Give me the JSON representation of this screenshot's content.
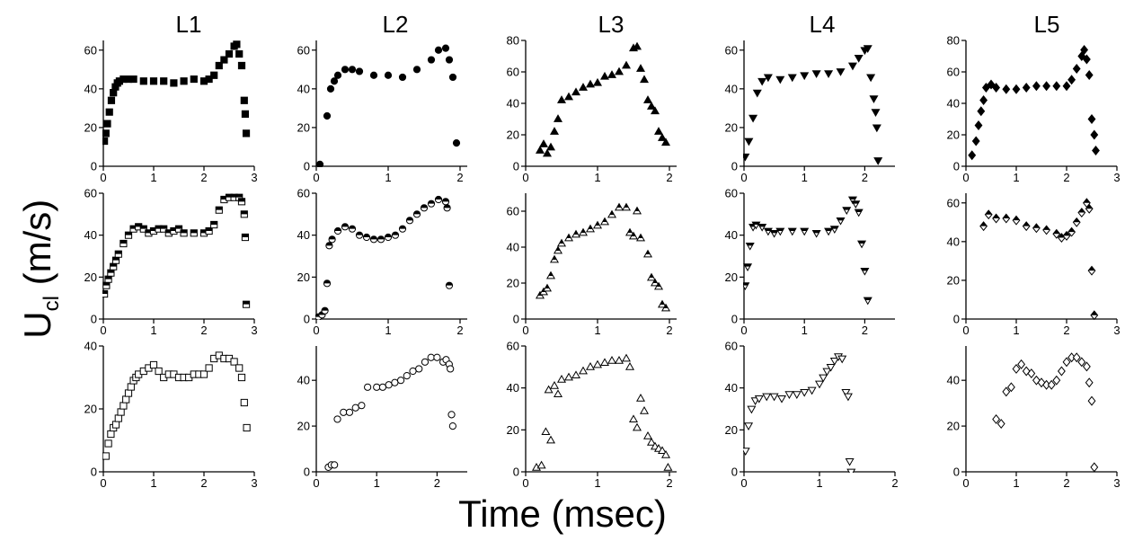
{
  "figure": {
    "xlabel": "Time (msec)",
    "ylabel_main": "U",
    "ylabel_sub": "cl",
    "ylabel_unit": " (m/s)",
    "column_titles": [
      "L1",
      "L2",
      "L3",
      "L4",
      "L5"
    ]
  },
  "chart_data": [
    {
      "type": "scatter",
      "row": 0,
      "col": 0,
      "marker": "square",
      "fill": "solid",
      "xlim": [
        0,
        3
      ],
      "ylim": [
        0,
        65
      ],
      "xticks": [
        0,
        1,
        2,
        3
      ],
      "yticks": [
        0,
        20,
        40,
        60
      ],
      "series": [
        {
          "x": [
            0.02,
            0.05,
            0.08,
            0.12,
            0.16,
            0.2,
            0.24,
            0.28,
            0.32,
            0.4,
            0.5,
            0.6,
            0.8,
            1.0,
            1.2,
            1.4,
            1.6,
            1.8,
            2.0,
            2.1,
            2.2,
            2.3,
            2.4,
            2.5,
            2.6,
            2.65,
            2.7,
            2.75,
            2.8,
            2.82,
            2.84
          ],
          "y": [
            13,
            17,
            22,
            28,
            34,
            38,
            41,
            43,
            44,
            45,
            45,
            45,
            44,
            44,
            44,
            43,
            44,
            45,
            44,
            45,
            47,
            52,
            55,
            58,
            62,
            63,
            58,
            52,
            34,
            27,
            17
          ]
        }
      ]
    },
    {
      "type": "scatter",
      "row": 0,
      "col": 1,
      "marker": "circle",
      "fill": "solid",
      "xlim": [
        0,
        2.1
      ],
      "ylim": [
        0,
        65
      ],
      "xticks": [
        0,
        1,
        2
      ],
      "yticks": [
        0,
        20,
        40,
        60
      ],
      "series": [
        {
          "x": [
            0.05,
            0.15,
            0.2,
            0.25,
            0.3,
            0.4,
            0.5,
            0.6,
            0.8,
            1.0,
            1.2,
            1.4,
            1.6,
            1.7,
            1.8,
            1.85,
            1.9,
            1.95
          ],
          "y": [
            1,
            26,
            40,
            44,
            47,
            50,
            50,
            49,
            47,
            47,
            46,
            50,
            55,
            60,
            61,
            55,
            46,
            12
          ]
        }
      ]
    },
    {
      "type": "scatter",
      "row": 0,
      "col": 2,
      "marker": "triangle-up",
      "fill": "solid",
      "xlim": [
        0,
        2.1
      ],
      "ylim": [
        0,
        80
      ],
      "xticks": [
        0,
        1,
        2
      ],
      "yticks": [
        0,
        20,
        40,
        60,
        80
      ],
      "series": [
        {
          "x": [
            0.2,
            0.25,
            0.3,
            0.35,
            0.4,
            0.45,
            0.5,
            0.6,
            0.7,
            0.8,
            0.9,
            1.0,
            1.1,
            1.2,
            1.3,
            1.4,
            1.5,
            1.55,
            1.6,
            1.65,
            1.7,
            1.75,
            1.8,
            1.85,
            1.9,
            1.95
          ],
          "y": [
            10,
            14,
            8,
            12,
            22,
            30,
            42,
            44,
            47,
            50,
            52,
            53,
            57,
            58,
            60,
            64,
            75,
            76,
            62,
            55,
            42,
            38,
            35,
            22,
            18,
            15
          ]
        }
      ]
    },
    {
      "type": "scatter",
      "row": 0,
      "col": 3,
      "marker": "triangle-down",
      "fill": "solid",
      "xlim": [
        0,
        2.5
      ],
      "ylim": [
        0,
        65
      ],
      "xticks": [
        0,
        1,
        2
      ],
      "yticks": [
        0,
        20,
        40,
        60
      ],
      "series": [
        {
          "x": [
            0.02,
            0.08,
            0.15,
            0.22,
            0.3,
            0.4,
            0.6,
            0.8,
            1.0,
            1.2,
            1.4,
            1.6,
            1.8,
            1.9,
            2.0,
            2.05,
            2.1,
            2.15,
            2.18,
            2.2,
            2.22
          ],
          "y": [
            5,
            13,
            25,
            38,
            44,
            46,
            45,
            46,
            47,
            48,
            48,
            49,
            52,
            56,
            60,
            61,
            46,
            35,
            28,
            20,
            3
          ]
        }
      ]
    },
    {
      "type": "scatter",
      "row": 0,
      "col": 4,
      "marker": "diamond",
      "fill": "solid",
      "xlim": [
        0,
        3
      ],
      "ylim": [
        0,
        80
      ],
      "xticks": [
        0,
        1,
        2,
        3
      ],
      "yticks": [
        0,
        20,
        40,
        60,
        80
      ],
      "series": [
        {
          "x": [
            0.12,
            0.2,
            0.25,
            0.3,
            0.35,
            0.4,
            0.5,
            0.6,
            0.8,
            1.0,
            1.2,
            1.4,
            1.6,
            1.8,
            2.0,
            2.1,
            2.2,
            2.3,
            2.35,
            2.4,
            2.45,
            2.5,
            2.55,
            2.58
          ],
          "y": [
            7,
            16,
            26,
            35,
            42,
            50,
            52,
            50,
            49,
            49,
            50,
            51,
            51,
            51,
            51,
            55,
            62,
            70,
            74,
            68,
            58,
            30,
            20,
            10
          ]
        }
      ]
    },
    {
      "type": "scatter",
      "row": 1,
      "col": 0,
      "marker": "square",
      "fill": "half",
      "xlim": [
        0,
        3
      ],
      "ylim": [
        0,
        60
      ],
      "xticks": [
        0,
        1,
        2,
        3
      ],
      "yticks": [
        0,
        20,
        40,
        60
      ],
      "series": [
        {
          "x": [
            0.02,
            0.06,
            0.1,
            0.15,
            0.2,
            0.25,
            0.3,
            0.4,
            0.5,
            0.6,
            0.7,
            0.8,
            0.9,
            1.0,
            1.1,
            1.2,
            1.3,
            1.4,
            1.5,
            1.6,
            1.8,
            2.0,
            2.1,
            2.2,
            2.3,
            2.4,
            2.5,
            2.6,
            2.7,
            2.75,
            2.8,
            2.82,
            2.84
          ],
          "y": [
            12,
            16,
            19,
            22,
            25,
            28,
            31,
            36,
            40,
            43,
            44,
            43,
            41,
            42,
            43,
            43,
            41,
            42,
            43,
            41,
            41,
            41,
            42,
            45,
            52,
            57,
            58,
            58,
            58,
            56,
            50,
            39,
            7
          ]
        }
      ]
    },
    {
      "type": "scatter",
      "row": 1,
      "col": 1,
      "marker": "circle",
      "fill": "half",
      "xlim": [
        0,
        2.1
      ],
      "ylim": [
        0,
        60
      ],
      "xticks": [
        0,
        1,
        2
      ],
      "yticks": [
        0,
        20,
        40,
        60
      ],
      "series": [
        {
          "x": [
            0.03,
            0.08,
            0.12,
            0.15,
            0.18,
            0.22,
            0.3,
            0.4,
            0.5,
            0.6,
            0.7,
            0.8,
            0.9,
            1.0,
            1.1,
            1.2,
            1.3,
            1.4,
            1.5,
            1.6,
            1.7,
            1.8,
            1.82,
            1.85
          ],
          "y": [
            1,
            2,
            4,
            17,
            35,
            38,
            42,
            44,
            43,
            40,
            39,
            38,
            38,
            39,
            40,
            43,
            47,
            50,
            53,
            55,
            57,
            56,
            53,
            16
          ]
        }
      ]
    },
    {
      "type": "scatter",
      "row": 1,
      "col": 2,
      "marker": "triangle-up",
      "fill": "half",
      "xlim": [
        0,
        2.1
      ],
      "ylim": [
        0,
        70
      ],
      "xticks": [
        0,
        1,
        2
      ],
      "yticks": [
        0,
        20,
        40,
        60
      ],
      "series": [
        {
          "x": [
            0.2,
            0.25,
            0.3,
            0.35,
            0.4,
            0.45,
            0.5,
            0.6,
            0.7,
            0.8,
            0.9,
            1.0,
            1.1,
            1.2,
            1.3,
            1.4,
            1.45,
            1.5,
            1.55,
            1.6,
            1.7,
            1.75,
            1.8,
            1.85,
            1.9,
            1.95
          ],
          "y": [
            13,
            15,
            17,
            24,
            33,
            38,
            42,
            45,
            47,
            48,
            50,
            52,
            54,
            58,
            62,
            62,
            48,
            46,
            60,
            45,
            36,
            23,
            20,
            18,
            8,
            6
          ]
        }
      ]
    },
    {
      "type": "scatter",
      "row": 1,
      "col": 3,
      "marker": "triangle-down",
      "fill": "half",
      "xlim": [
        0,
        2.5
      ],
      "ylim": [
        0,
        60
      ],
      "xticks": [
        0,
        1,
        2
      ],
      "yticks": [
        0,
        20,
        40,
        60
      ],
      "series": [
        {
          "x": [
            0.02,
            0.06,
            0.1,
            0.15,
            0.2,
            0.3,
            0.4,
            0.5,
            0.6,
            0.8,
            1.0,
            1.2,
            1.4,
            1.5,
            1.6,
            1.7,
            1.8,
            1.85,
            1.9,
            1.95,
            2.0,
            2.05
          ],
          "y": [
            16,
            25,
            35,
            44,
            45,
            44,
            42,
            41,
            42,
            42,
            42,
            41,
            42,
            43,
            47,
            52,
            57,
            55,
            51,
            36,
            23,
            9
          ]
        }
      ]
    },
    {
      "type": "scatter",
      "row": 1,
      "col": 4,
      "marker": "diamond",
      "fill": "half",
      "xlim": [
        0,
        3
      ],
      "ylim": [
        0,
        65
      ],
      "xticks": [
        0,
        1,
        2,
        3
      ],
      "yticks": [
        0,
        20,
        40,
        60
      ],
      "series": [
        {
          "x": [
            0.35,
            0.45,
            0.6,
            0.8,
            1.0,
            1.2,
            1.4,
            1.6,
            1.8,
            1.9,
            2.0,
            2.1,
            2.2,
            2.3,
            2.4,
            2.45,
            2.5,
            2.55
          ],
          "y": [
            48,
            54,
            52,
            52,
            51,
            48,
            47,
            46,
            44,
            42,
            43,
            45,
            50,
            55,
            60,
            57,
            25,
            2
          ]
        }
      ]
    },
    {
      "type": "scatter",
      "row": 2,
      "col": 0,
      "marker": "square",
      "fill": "open",
      "xlim": [
        0,
        3
      ],
      "ylim": [
        0,
        40
      ],
      "xticks": [
        0,
        1,
        2,
        3
      ],
      "yticks": [
        0,
        20,
        40
      ],
      "series": [
        {
          "x": [
            0.05,
            0.1,
            0.15,
            0.2,
            0.25,
            0.3,
            0.35,
            0.4,
            0.45,
            0.5,
            0.55,
            0.6,
            0.65,
            0.7,
            0.8,
            0.9,
            1.0,
            1.1,
            1.2,
            1.3,
            1.4,
            1.5,
            1.6,
            1.7,
            1.8,
            1.9,
            2.0,
            2.1,
            2.2,
            2.3,
            2.4,
            2.5,
            2.6,
            2.7,
            2.75,
            2.8,
            2.85
          ],
          "y": [
            5,
            9,
            12,
            14,
            15,
            17,
            19,
            21,
            23,
            25,
            27,
            29,
            30,
            31,
            32,
            33,
            34,
            32,
            30,
            31,
            31,
            30,
            30,
            30,
            31,
            31,
            31,
            33,
            36,
            37,
            36,
            36,
            35,
            33,
            30,
            22,
            14
          ]
        }
      ]
    },
    {
      "type": "scatter",
      "row": 2,
      "col": 1,
      "marker": "circle",
      "fill": "open",
      "xlim": [
        0,
        2.5
      ],
      "ylim": [
        0,
        55
      ],
      "xticks": [
        0,
        1,
        2
      ],
      "yticks": [
        0,
        20,
        40
      ],
      "series": [
        {
          "x": [
            0.2,
            0.25,
            0.3,
            0.35,
            0.45,
            0.55,
            0.65,
            0.75,
            0.85,
            1.0,
            1.1,
            1.2,
            1.3,
            1.4,
            1.5,
            1.6,
            1.7,
            1.8,
            1.9,
            2.0,
            2.1,
            2.15,
            2.2,
            2.22,
            2.24,
            2.26
          ],
          "y": [
            2,
            3,
            3,
            23,
            26,
            26,
            28,
            29,
            37,
            37,
            37,
            38,
            39,
            40,
            42,
            44,
            45,
            48,
            50,
            50,
            48,
            49,
            47,
            45,
            25,
            20
          ]
        }
      ]
    },
    {
      "type": "scatter",
      "row": 2,
      "col": 2,
      "marker": "triangle-up",
      "fill": "open",
      "xlim": [
        0,
        2.1
      ],
      "ylim": [
        0,
        60
      ],
      "xticks": [
        0,
        1,
        2
      ],
      "yticks": [
        0,
        20,
        40,
        60
      ],
      "series": [
        {
          "x": [
            0.15,
            0.22,
            0.28,
            0.32,
            0.35,
            0.4,
            0.45,
            0.5,
            0.6,
            0.7,
            0.8,
            0.9,
            1.0,
            1.1,
            1.2,
            1.3,
            1.4,
            1.45,
            1.5,
            1.55,
            1.6,
            1.65,
            1.7,
            1.75,
            1.8,
            1.85,
            1.9,
            1.95,
            1.98
          ],
          "y": [
            2,
            3,
            19,
            39,
            15,
            41,
            37,
            44,
            45,
            46,
            48,
            50,
            51,
            52,
            53,
            53,
            54,
            50,
            25,
            21,
            35,
            29,
            17,
            14,
            12,
            11,
            10,
            8,
            2
          ]
        }
      ]
    },
    {
      "type": "scatter",
      "row": 2,
      "col": 3,
      "marker": "triangle-down",
      "fill": "open",
      "xlim": [
        0,
        2.0
      ],
      "ylim": [
        0,
        60
      ],
      "xticks": [
        0,
        1,
        2
      ],
      "yticks": [
        0,
        20,
        40,
        60
      ],
      "series": [
        {
          "x": [
            0.02,
            0.06,
            0.1,
            0.15,
            0.2,
            0.3,
            0.4,
            0.5,
            0.6,
            0.7,
            0.8,
            0.9,
            1.0,
            1.05,
            1.1,
            1.15,
            1.2,
            1.25,
            1.3,
            1.35,
            1.38,
            1.4,
            1.42
          ],
          "y": [
            10,
            22,
            30,
            34,
            35,
            36,
            36,
            35,
            37,
            37,
            38,
            39,
            42,
            45,
            48,
            50,
            53,
            55,
            54,
            38,
            36,
            5,
            0
          ]
        }
      ]
    },
    {
      "type": "scatter",
      "row": 2,
      "col": 4,
      "marker": "diamond",
      "fill": "open",
      "xlim": [
        0,
        3
      ],
      "ylim": [
        0,
        55
      ],
      "xticks": [
        0,
        1,
        2,
        3
      ],
      "yticks": [
        0,
        20,
        40
      ],
      "series": [
        {
          "x": [
            0.6,
            0.7,
            0.8,
            0.9,
            1.0,
            1.1,
            1.2,
            1.3,
            1.4,
            1.5,
            1.6,
            1.7,
            1.8,
            1.9,
            2.0,
            2.1,
            2.2,
            2.3,
            2.4,
            2.45,
            2.5,
            2.55
          ],
          "y": [
            23,
            21,
            35,
            37,
            45,
            47,
            44,
            43,
            40,
            39,
            38,
            38,
            40,
            44,
            48,
            50,
            50,
            48,
            46,
            39,
            31,
            2
          ]
        }
      ]
    }
  ]
}
